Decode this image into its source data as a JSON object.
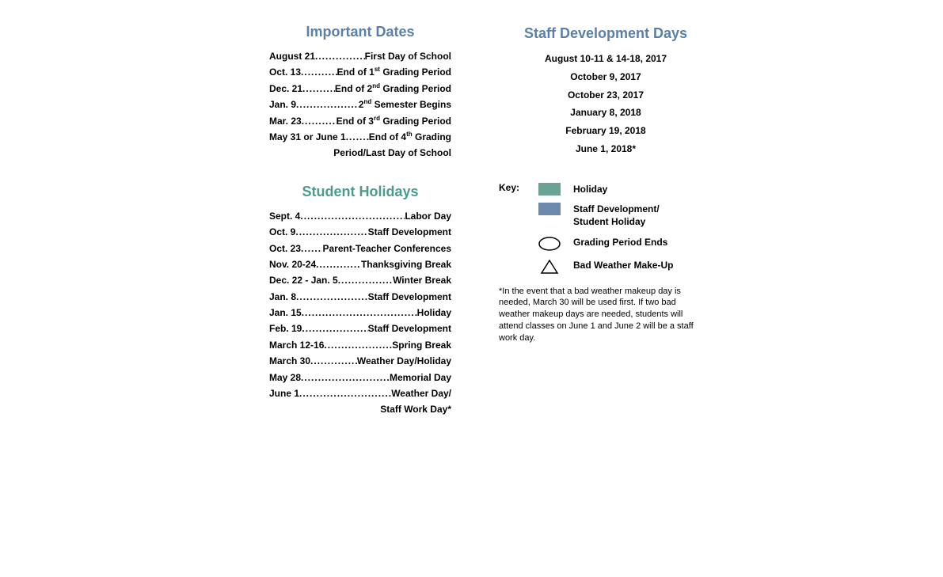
{
  "colors": {
    "title_blue": "#5b7fa6",
    "title_green": "#4a9b8e",
    "holiday_swatch": "#6aa393",
    "staff_swatch": "#6d88ad",
    "text": "#000000",
    "ellipse_stroke": "#000000",
    "triangle_stroke": "#000000"
  },
  "important_dates": {
    "title": "Important Dates",
    "rows": [
      {
        "lead": "August 21",
        "tail": "First Day of School"
      },
      {
        "lead": "Oct. 13",
        "tail_html": "End of 1<sup>st</sup> Grading Period"
      },
      {
        "lead": "Dec. 21",
        "tail_html": "End of 2<sup>nd</sup> Grading Period"
      },
      {
        "lead": "Jan. 9",
        "tail_html": "2<sup>nd</sup> Semester Begins"
      },
      {
        "lead": "Mar. 23",
        "tail_html": "End of 3<sup>rd</sup> Grading Period"
      },
      {
        "lead": "May 31 or June 1",
        "tail_html": "End of 4<sup>th</sup> Grading"
      }
    ],
    "trailing_line": "Period/Last Day of School"
  },
  "student_holidays": {
    "title": "Student Holidays",
    "rows": [
      {
        "lead": "Sept. 4",
        "tail": "Labor Day"
      },
      {
        "lead": "Oct. 9",
        "tail": "Staff Development"
      },
      {
        "lead": "Oct. 23",
        "tail": "Parent-Teacher Conferences"
      },
      {
        "lead": "Nov. 20-24",
        "tail": "Thanksgiving Break"
      },
      {
        "lead": "Dec. 22 - Jan. 5",
        "tail": "Winter Break"
      },
      {
        "lead": "Jan. 8",
        "tail": "Staff Development"
      },
      {
        "lead": "Jan. 15",
        "tail": "Holiday"
      },
      {
        "lead": "Feb. 19",
        "tail": "Staff Development"
      },
      {
        "lead": "March 12-16",
        "tail": "Spring Break"
      },
      {
        "lead": "March 30",
        "tail": "Weather Day/Holiday"
      },
      {
        "lead": "May 28",
        "tail": "Memorial Day"
      },
      {
        "lead": "June 1",
        "tail": "Weather Day/"
      }
    ],
    "trailing_line": "Staff Work Day*"
  },
  "staff_dev": {
    "title": "Staff Development Days",
    "items": [
      "August 10-11 & 14-18, 2017",
      "October 9, 2017",
      "October 23, 2017",
      "January 8, 2018",
      "February 19, 2018",
      "June 1, 2018*"
    ]
  },
  "key": {
    "label": "Key:",
    "holiday": "Holiday",
    "staff_line1": "Staff Development/",
    "staff_line2": "Student Holiday",
    "grading_ends": "Grading Period Ends",
    "bad_weather": "Bad Weather Make-Up"
  },
  "footnote": "*In the event that a bad weather makeup day is needed, March 30 will be used first.  If two bad weather makeup days are needed, students will attend classes on June 1 and June 2 will be a staff work day."
}
